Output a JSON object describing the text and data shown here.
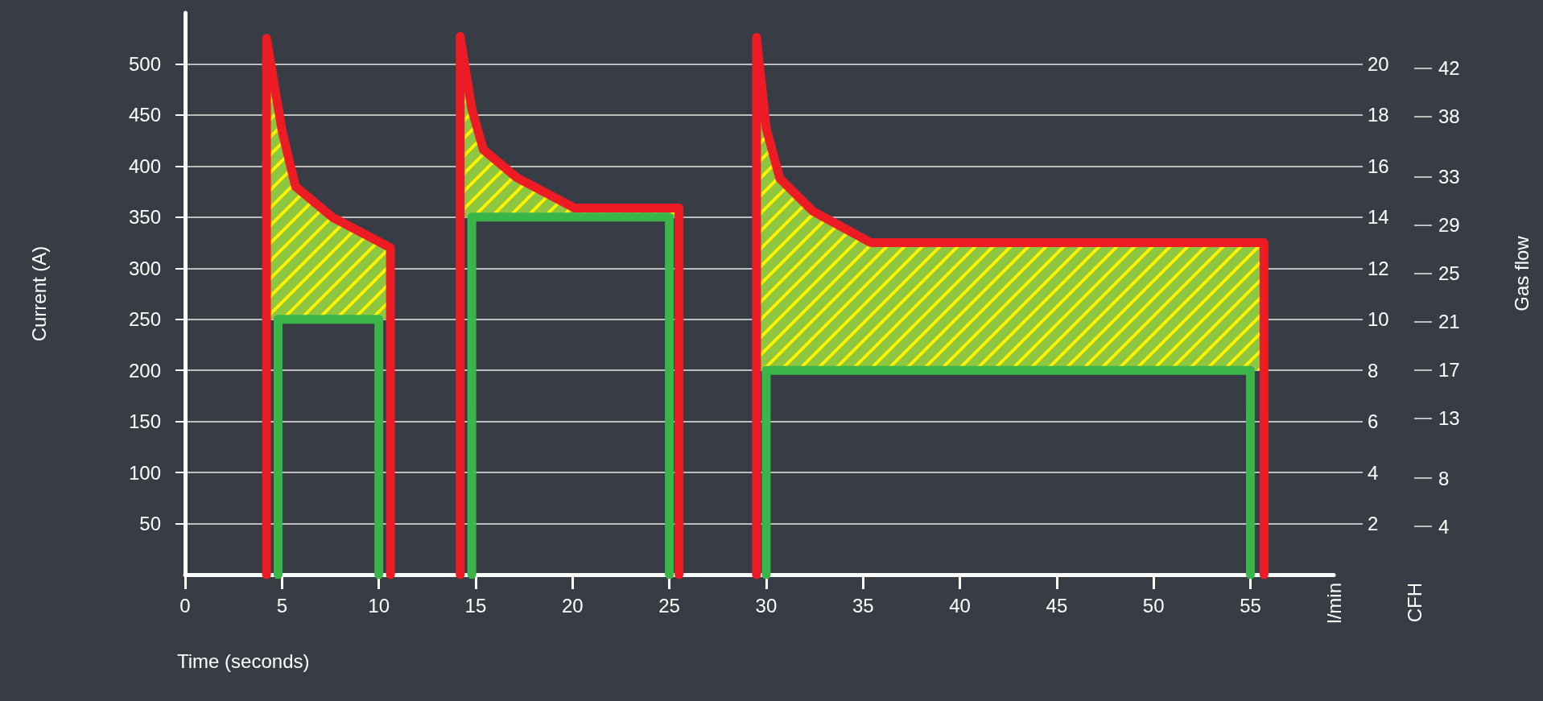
{
  "chart_data": {
    "type": "line",
    "xlabel": "Time (seconds)",
    "ylabel": "Current (A)",
    "y2label": "l/min",
    "y3label": "CFH",
    "annotations": [
      "Gas flow"
    ],
    "xlim": [
      0,
      59.3
    ],
    "xticks": [
      0,
      5,
      10,
      15,
      20,
      25,
      30,
      35,
      40,
      45,
      50,
      55
    ],
    "ylim": [
      0,
      550
    ],
    "yticks": [
      50,
      100,
      150,
      200,
      250,
      300,
      350,
      400,
      450,
      500
    ],
    "y2lim": [
      0,
      22
    ],
    "y2ticks": [
      2,
      4,
      6,
      8,
      10,
      12,
      14,
      16,
      18,
      20
    ],
    "y3lim": [
      0,
      46.6
    ],
    "y3ticks": [
      4,
      8,
      13,
      17,
      21,
      25,
      29,
      33,
      38,
      42
    ],
    "grid": "y",
    "series": [
      {
        "color": "#ed1c24",
        "x": [
          4.2,
          4.2,
          5.0,
          5.7,
          7.6,
          10.6,
          10.6,
          12,
          14.2,
          14.2,
          14.8,
          15.4,
          17.1,
          20.1,
          25.5,
          25.5,
          27,
          29.5,
          29.5,
          30.0,
          30.7,
          32.4,
          35.4,
          55.7,
          55.7
        ],
        "values": [
          0,
          525,
          435,
          380,
          350,
          320,
          0,
          null,
          0,
          527,
          456,
          416,
          389,
          359,
          359,
          0,
          null,
          0,
          526,
          437,
          388,
          356,
          325,
          325,
          0
        ],
        "lower": [
          null,
          250,
          250,
          250,
          250,
          250,
          null,
          null,
          null,
          350,
          350,
          350,
          350,
          350,
          350,
          null,
          null,
          null,
          200,
          200,
          200,
          200,
          200,
          200,
          null
        ],
        "upper": [
          null,
          525,
          435,
          380,
          350,
          320,
          null,
          null,
          null,
          527,
          456,
          416,
          389,
          359,
          359,
          null,
          null,
          null,
          526,
          437,
          388,
          356,
          325,
          325,
          null
        ]
      },
      {
        "color": "#39b54a",
        "x": [
          4.8,
          4.8,
          10,
          10,
          12,
          14.8,
          14.8,
          25,
          25,
          27,
          30,
          30,
          55,
          55
        ],
        "values": [
          0,
          250,
          250,
          0,
          null,
          0,
          350,
          350,
          0,
          null,
          0,
          200,
          200,
          0
        ]
      }
    ]
  }
}
